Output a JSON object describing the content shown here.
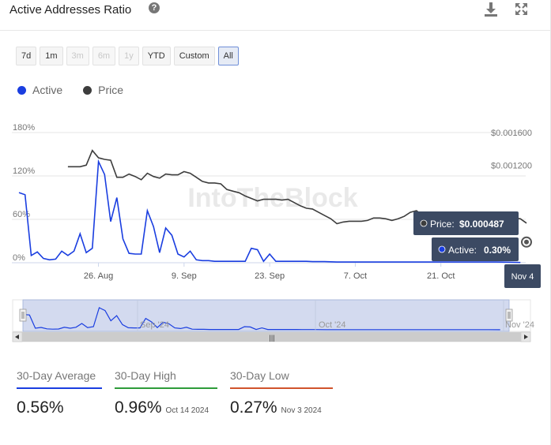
{
  "header": {
    "title": "Active Addresses Ratio",
    "help_icon": "?",
    "download_icon": "download-icon",
    "expand_icon": "expand-icon"
  },
  "range_buttons": [
    {
      "label": "7d",
      "state": "enabled"
    },
    {
      "label": "1m",
      "state": "enabled"
    },
    {
      "label": "3m",
      "state": "disabled"
    },
    {
      "label": "6m",
      "state": "disabled"
    },
    {
      "label": "1y",
      "state": "disabled"
    },
    {
      "label": "YTD",
      "state": "enabled"
    },
    {
      "label": "Custom",
      "state": "enabled"
    },
    {
      "label": "All",
      "state": "active"
    }
  ],
  "colors": {
    "active": "#1a3ee0",
    "price": "#3d3d3d",
    "avg_underline": "#1a3ee0",
    "high_underline": "#2e9c3a",
    "low_underline": "#d0532c",
    "tooltip_bg": "#3c4a63"
  },
  "chart_data": {
    "type": "line",
    "title": "Active Addresses Ratio",
    "watermark": "IntoTheBlock",
    "legend": {
      "placement": "top-left",
      "items": [
        "Active",
        "Price"
      ]
    },
    "grid": {
      "horizontal": true,
      "vertical": false
    },
    "x_axis": {
      "start_date": "2024-08-13",
      "end_date": "2024-11-04",
      "tick_labels": [
        {
          "day": 13,
          "label": "26. Aug"
        },
        {
          "day": 27,
          "label": "9. Sep"
        },
        {
          "day": 41,
          "label": "23. Sep"
        },
        {
          "day": 55,
          "label": "7. Oct"
        },
        {
          "day": 69,
          "label": "21. Oct"
        }
      ],
      "range": [
        0,
        83
      ]
    },
    "y_left": {
      "ticks": [
        "0%",
        "60%",
        "120%",
        "180%"
      ],
      "tick_values": [
        0,
        60,
        120,
        180
      ],
      "range": [
        0,
        180
      ]
    },
    "y_right": {
      "ticks": [
        "$0.001200",
        "$0.001600"
      ],
      "tick_values": [
        0.0012,
        0.0016
      ],
      "range": [
        0,
        0.0016
      ]
    },
    "series": [
      {
        "name": "Active",
        "axis": "left",
        "points": [
          [
            0,
            97
          ],
          [
            1,
            94
          ],
          [
            2,
            10
          ],
          [
            3,
            15
          ],
          [
            4,
            6
          ],
          [
            5,
            4
          ],
          [
            6,
            5
          ],
          [
            7,
            16
          ],
          [
            8,
            10
          ],
          [
            9,
            16
          ],
          [
            10,
            40
          ],
          [
            11,
            14
          ],
          [
            12,
            20
          ],
          [
            13,
            140
          ],
          [
            14,
            122
          ],
          [
            15,
            57
          ],
          [
            16,
            90
          ],
          [
            17,
            33
          ],
          [
            18,
            13
          ],
          [
            19,
            12
          ],
          [
            20,
            12
          ],
          [
            21,
            72
          ],
          [
            22,
            50
          ],
          [
            23,
            14
          ],
          [
            24,
            48
          ],
          [
            25,
            38
          ],
          [
            26,
            12
          ],
          [
            27,
            8
          ],
          [
            28,
            16
          ],
          [
            29,
            4
          ],
          [
            30,
            3
          ],
          [
            31,
            3
          ],
          [
            32,
            2
          ],
          [
            33,
            2
          ],
          [
            34,
            2
          ],
          [
            35,
            2
          ],
          [
            36,
            2
          ],
          [
            37,
            2
          ],
          [
            38,
            20
          ],
          [
            39,
            18
          ],
          [
            40,
            2
          ],
          [
            41,
            12
          ],
          [
            42,
            2
          ],
          [
            43,
            2
          ],
          [
            44,
            2
          ],
          [
            45,
            2
          ],
          [
            46,
            2
          ],
          [
            47,
            2
          ],
          [
            48,
            1.5
          ],
          [
            50,
            1.5
          ],
          [
            52,
            1
          ],
          [
            54,
            1
          ],
          [
            56,
            1
          ],
          [
            58,
            1
          ],
          [
            60,
            1
          ],
          [
            62,
            1
          ],
          [
            64,
            1
          ],
          [
            66,
            1
          ],
          [
            68,
            1
          ],
          [
            70,
            1
          ],
          [
            72,
            1
          ],
          [
            74,
            1
          ],
          [
            76,
            1
          ],
          [
            78,
            1
          ],
          [
            80,
            0.8
          ],
          [
            82,
            0.3
          ]
        ]
      },
      {
        "name": "Price",
        "axis": "right",
        "points": [
          [
            8,
            0.00118
          ],
          [
            10,
            0.00118
          ],
          [
            11,
            0.0012
          ],
          [
            12,
            0.00138
          ],
          [
            13,
            0.00129
          ],
          [
            14,
            0.00127
          ],
          [
            15,
            0.00126
          ],
          [
            16,
            0.00105
          ],
          [
            17,
            0.00105
          ],
          [
            18,
            0.00109
          ],
          [
            19,
            0.00106
          ],
          [
            20,
            0.00102
          ],
          [
            21,
            0.0011
          ],
          [
            22,
            0.00106
          ],
          [
            23,
            0.00104
          ],
          [
            24,
            0.00109
          ],
          [
            25,
            0.00108
          ],
          [
            26,
            0.00108
          ],
          [
            27,
            0.00112
          ],
          [
            28,
            0.0011
          ],
          [
            29,
            0.00105
          ],
          [
            30,
            0.001
          ],
          [
            31,
            0.00098
          ],
          [
            32,
            0.00098
          ],
          [
            33,
            0.00097
          ],
          [
            34,
            0.0009
          ],
          [
            35,
            0.00088
          ],
          [
            36,
            0.00086
          ],
          [
            37,
            0.00082
          ],
          [
            38,
            0.00079
          ],
          [
            39,
            0.00076
          ],
          [
            40,
            0.00078
          ],
          [
            41,
            0.00078
          ],
          [
            42,
            0.00078
          ],
          [
            43,
            0.00077
          ],
          [
            44,
            0.00078
          ],
          [
            45,
            0.00074
          ],
          [
            46,
            0.0007
          ],
          [
            47,
            0.00067
          ],
          [
            48,
            0.00066
          ],
          [
            49,
            0.00062
          ],
          [
            50,
            0.00058
          ],
          [
            51,
            0.00054
          ],
          [
            52,
            0.00048
          ],
          [
            53,
            0.0005
          ],
          [
            54,
            0.00051
          ],
          [
            55,
            0.00051
          ],
          [
            56,
            0.00051
          ],
          [
            57,
            0.00052
          ],
          [
            58,
            0.00055
          ],
          [
            59,
            0.00055
          ],
          [
            60,
            0.00054
          ],
          [
            61,
            0.00052
          ],
          [
            62,
            0.00054
          ],
          [
            63,
            0.00057
          ],
          [
            64,
            0.00062
          ],
          [
            65,
            0.00064
          ],
          [
            66,
            0.00058
          ],
          [
            67,
            0.0006
          ],
          [
            68,
            0.00056
          ],
          [
            69,
            0.00052
          ],
          [
            70,
            0.00054
          ],
          [
            71,
            0.00055
          ],
          [
            72,
            0.00056
          ],
          [
            73,
            0.00054
          ],
          [
            74,
            0.00053
          ],
          [
            75,
            0.00052
          ],
          [
            76,
            0.00051
          ],
          [
            77,
            0.0005
          ],
          [
            78,
            0.00049
          ],
          [
            79,
            0.00052
          ],
          [
            80,
            0.0006
          ],
          [
            81,
            0.00055
          ],
          [
            82,
            0.00054
          ],
          [
            83,
            0.000487
          ]
        ]
      }
    ],
    "tooltip": {
      "price_label": "Price:",
      "price_value": "$0.000487",
      "active_label": "Active:",
      "active_value": "0.30%",
      "date": "Nov 4"
    },
    "navigator": {
      "labels": [
        "Sep '24",
        "Oct '24",
        "Nov '24"
      ],
      "scrollbar_grip": "|||"
    }
  },
  "stats": [
    {
      "label": "30-Day Average",
      "value": "0.56%",
      "date": "",
      "color_key": "avg_underline"
    },
    {
      "label": "30-Day High",
      "value": "0.96%",
      "date": "Oct 14 2024",
      "color_key": "high_underline"
    },
    {
      "label": "30-Day Low",
      "value": "0.27%",
      "date": "Nov 3 2024",
      "color_key": "low_underline"
    }
  ]
}
